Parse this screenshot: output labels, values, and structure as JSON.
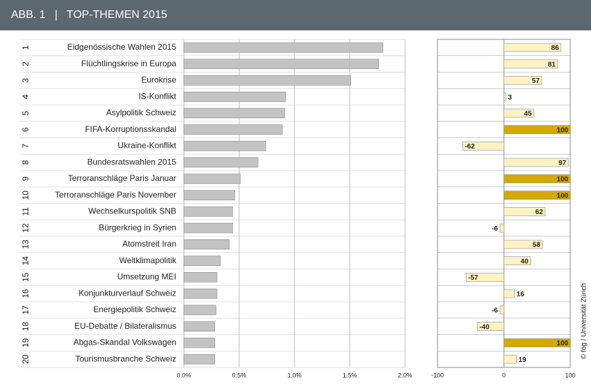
{
  "header": {
    "title": "ABB. 1   |   TOP-THEMEN 2015"
  },
  "credit": "© fög / Universität Zürich",
  "chart_data": [
    {
      "type": "bar",
      "ranks": [
        "1",
        "2",
        "3",
        "4",
        "5",
        "6",
        "7",
        "8",
        "9",
        "10",
        "11",
        "12",
        "13",
        "14",
        "15",
        "16",
        "17",
        "18",
        "19",
        "20"
      ],
      "categories": [
        "Eidgenössische Wahlen 2015",
        "Flüchtlingskrise in Europa",
        "Eurokrise",
        "IS-Konflikt",
        "Asylpolitik Schweiz",
        "FIFA-Korruptionsskandal",
        "Ukraine-Konflikt",
        "Bundesratswahlen 2015",
        "Terroranschläge Paris Januar",
        "Terroranschläge Paris November",
        "Wechselkurspolitik SNB",
        "Bürgerkrieg in Syrien",
        "Atomstreit Iran",
        "Weltklimapolitik",
        "Umsetzung MEI",
        "Konjunkturverlauf Schweiz",
        "Energiepolitik Schweiz",
        "EU-Debatte / Bilateralismus",
        "Abgas-Skandal Volkswagen",
        "Tourismusbranche Schweiz"
      ],
      "values": [
        1.8,
        1.76,
        1.51,
        0.92,
        0.91,
        0.89,
        0.74,
        0.67,
        0.51,
        0.46,
        0.44,
        0.44,
        0.41,
        0.33,
        0.3,
        0.3,
        0.29,
        0.28,
        0.28,
        0.28
      ],
      "color": "#c3c3c3",
      "xlim": [
        0,
        2
      ],
      "xticks": [
        {
          "value": 0,
          "label": "0.0%"
        },
        {
          "value": 0.5,
          "label": "0.5%"
        },
        {
          "value": 1,
          "label": "1.0%"
        },
        {
          "value": 1.5,
          "label": "1.5%"
        },
        {
          "value": 2,
          "label": "2.0%"
        }
      ],
      "grid": true
    },
    {
      "type": "bar",
      "values": [
        86,
        81,
        57,
        3,
        45,
        100,
        -62,
        97,
        100,
        100,
        62,
        -6,
        58,
        40,
        -57,
        16,
        -6,
        -40,
        100,
        19
      ],
      "colors": [
        "#fff3c4",
        "#fff3c4",
        "#fff3c4",
        "#fff3c4",
        "#fff3c4",
        "#d4a900",
        "#fff3c4",
        "#fff3c4",
        "#d4a900",
        "#d4a900",
        "#fff3c4",
        "#fff3c4",
        "#fff3c4",
        "#fff3c4",
        "#fff3c4",
        "#fff3c4",
        "#fff3c4",
        "#fff3c4",
        "#d4a900",
        "#fff3c4"
      ],
      "xlim": [
        -100,
        100
      ],
      "xticks": [
        -100,
        0,
        100
      ]
    }
  ]
}
